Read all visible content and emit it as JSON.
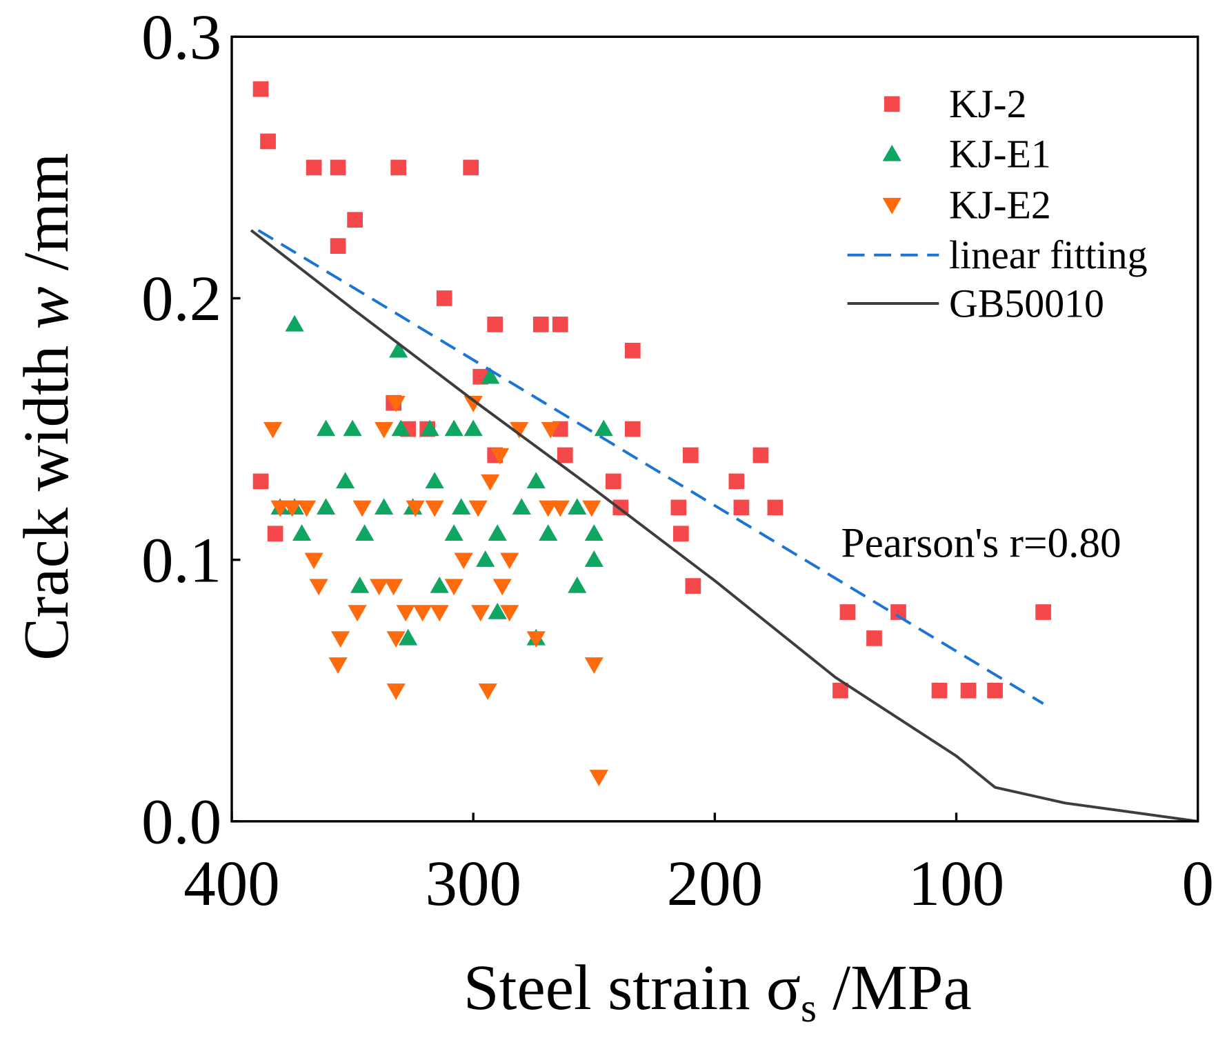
{
  "chart_data": {
    "type": "scatter",
    "xlabel": {
      "main": "Steel strain σ",
      "sub": "s",
      "unit": " /MPa"
    },
    "ylabel": {
      "main": "Crack width ",
      "var": "w",
      "unit": " /mm"
    },
    "xlim": [
      400,
      0
    ],
    "ylim": [
      0,
      0.3
    ],
    "x_tick_values": [
      400,
      300,
      200,
      100,
      0
    ],
    "x_ticks": [
      "400",
      "300",
      "200",
      "100",
      "0"
    ],
    "y_tick_values": [
      0,
      0.1,
      0.2,
      0.3
    ],
    "y_ticks": [
      "0.0",
      "0.1",
      "0.2",
      "0.3"
    ],
    "grid": false,
    "legend_position": "top-right",
    "series": [
      {
        "name": "KJ-2",
        "color": "#F4484B",
        "points": [
          [
            388,
            0.28
          ],
          [
            385,
            0.26
          ],
          [
            366,
            0.25
          ],
          [
            356,
            0.25
          ],
          [
            331,
            0.25
          ],
          [
            301,
            0.25
          ],
          [
            349,
            0.23
          ],
          [
            356,
            0.22
          ],
          [
            312,
            0.2
          ],
          [
            291,
            0.19
          ],
          [
            272,
            0.19
          ],
          [
            264,
            0.19
          ],
          [
            234,
            0.18
          ],
          [
            297,
            0.17
          ],
          [
            333,
            0.16
          ],
          [
            327,
            0.15
          ],
          [
            319,
            0.15
          ],
          [
            264,
            0.15
          ],
          [
            234,
            0.15
          ],
          [
            291,
            0.14
          ],
          [
            262,
            0.14
          ],
          [
            210,
            0.14
          ],
          [
            181,
            0.14
          ],
          [
            388,
            0.13
          ],
          [
            242,
            0.13
          ],
          [
            191,
            0.13
          ],
          [
            239,
            0.12
          ],
          [
            215,
            0.12
          ],
          [
            189,
            0.12
          ],
          [
            175,
            0.12
          ],
          [
            382,
            0.11
          ],
          [
            214,
            0.11
          ],
          [
            209,
            0.09
          ],
          [
            145,
            0.08
          ],
          [
            124,
            0.08
          ],
          [
            64,
            0.08
          ],
          [
            134,
            0.07
          ],
          [
            148,
            0.05
          ],
          [
            107,
            0.05
          ],
          [
            95,
            0.05
          ],
          [
            84,
            0.05
          ]
        ]
      },
      {
        "name": "KJ-E1",
        "color": "#0FA661",
        "points": [
          [
            374,
            0.19
          ],
          [
            331,
            0.18
          ],
          [
            293,
            0.17
          ],
          [
            361,
            0.15
          ],
          [
            350,
            0.15
          ],
          [
            330,
            0.15
          ],
          [
            318,
            0.15
          ],
          [
            308,
            0.15
          ],
          [
            300,
            0.15
          ],
          [
            246,
            0.15
          ],
          [
            353,
            0.13
          ],
          [
            316,
            0.13
          ],
          [
            274,
            0.13
          ],
          [
            380,
            0.12
          ],
          [
            374,
            0.12
          ],
          [
            361,
            0.12
          ],
          [
            337,
            0.12
          ],
          [
            325,
            0.12
          ],
          [
            305,
            0.12
          ],
          [
            280,
            0.12
          ],
          [
            257,
            0.12
          ],
          [
            371,
            0.11
          ],
          [
            345,
            0.11
          ],
          [
            308,
            0.11
          ],
          [
            290,
            0.11
          ],
          [
            269,
            0.11
          ],
          [
            250,
            0.11
          ],
          [
            295,
            0.1
          ],
          [
            250,
            0.1
          ],
          [
            347,
            0.09
          ],
          [
            314,
            0.09
          ],
          [
            257,
            0.09
          ],
          [
            290,
            0.08
          ],
          [
            327,
            0.07
          ],
          [
            274,
            0.07
          ]
        ]
      },
      {
        "name": "KJ-E2",
        "color": "#FF6A0F",
        "points": [
          [
            383,
            0.15
          ],
          [
            337,
            0.15
          ],
          [
            281,
            0.15
          ],
          [
            268,
            0.15
          ],
          [
            332,
            0.16
          ],
          [
            300,
            0.16
          ],
          [
            289,
            0.14
          ],
          [
            293,
            0.13
          ],
          [
            380,
            0.12
          ],
          [
            375,
            0.12
          ],
          [
            369,
            0.12
          ],
          [
            346,
            0.12
          ],
          [
            324,
            0.12
          ],
          [
            316,
            0.12
          ],
          [
            298,
            0.12
          ],
          [
            269,
            0.12
          ],
          [
            264,
            0.12
          ],
          [
            251,
            0.12
          ],
          [
            366,
            0.1
          ],
          [
            304,
            0.1
          ],
          [
            285,
            0.1
          ],
          [
            364,
            0.09
          ],
          [
            339,
            0.09
          ],
          [
            333,
            0.09
          ],
          [
            308,
            0.09
          ],
          [
            288,
            0.09
          ],
          [
            348,
            0.08
          ],
          [
            328,
            0.08
          ],
          [
            321,
            0.08
          ],
          [
            314,
            0.08
          ],
          [
            297,
            0.08
          ],
          [
            285,
            0.08
          ],
          [
            355,
            0.07
          ],
          [
            332,
            0.07
          ],
          [
            274,
            0.07
          ],
          [
            356,
            0.06
          ],
          [
            250,
            0.06
          ],
          [
            332,
            0.05
          ],
          [
            294,
            0.05
          ],
          [
            248,
            0.017
          ]
        ]
      },
      {
        "name": "linear fitting",
        "color": "#1C74D6",
        "dashed": true,
        "points": [
          [
            389,
            0.226
          ],
          [
            64,
            0.045
          ]
        ]
      },
      {
        "name": "GB50010",
        "color": "#3D3D3D",
        "dashed": false,
        "points": [
          [
            392,
            0.226
          ],
          [
            350,
            0.196
          ],
          [
            300,
            0.161
          ],
          [
            250,
            0.127
          ],
          [
            200,
            0.092
          ],
          [
            150,
            0.055
          ],
          [
            100,
            0.025
          ],
          [
            84,
            0.013
          ],
          [
            55,
            0.007
          ],
          [
            0,
            0
          ]
        ]
      }
    ],
    "annotations": [
      {
        "text": "Pearson's r=0.80"
      }
    ]
  }
}
